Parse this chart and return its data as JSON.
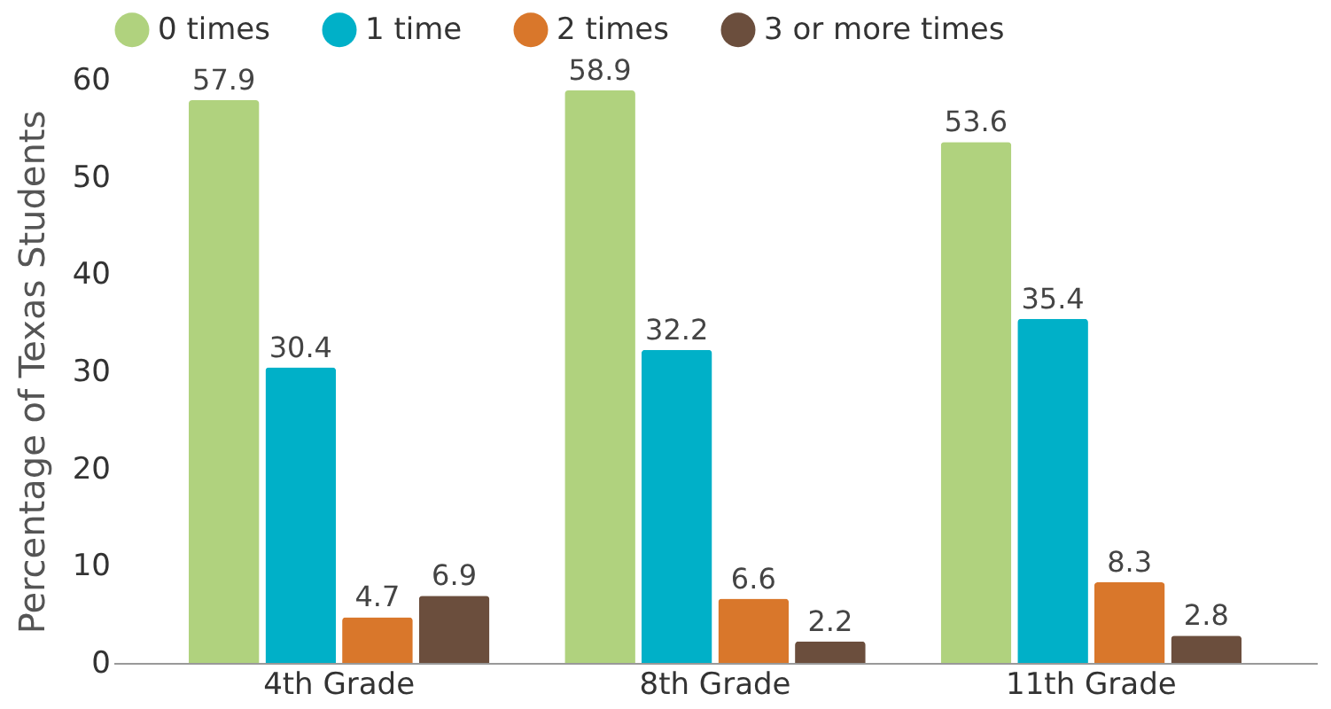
{
  "chart_data": {
    "type": "bar",
    "ylabel": "Percentage of Texas Students",
    "categories": [
      "4th Grade",
      "8th Grade",
      "11th Grade"
    ],
    "series": [
      {
        "name": "0 times",
        "color": "#b0d27e",
        "values": [
          57.9,
          58.9,
          53.6
        ]
      },
      {
        "name": "1 time",
        "color": "#00b0c8",
        "values": [
          30.4,
          32.2,
          35.4
        ]
      },
      {
        "name": "2 times",
        "color": "#d9772b",
        "values": [
          4.7,
          6.6,
          8.3
        ]
      },
      {
        "name": "3 or more times",
        "color": "#6b4e3d",
        "values": [
          6.9,
          2.2,
          2.8
        ]
      }
    ],
    "ylim": [
      0,
      60
    ],
    "yticks": [
      0,
      10,
      20,
      30,
      40,
      50,
      60
    ],
    "grid": false,
    "legend": "top",
    "data_labels": true
  }
}
